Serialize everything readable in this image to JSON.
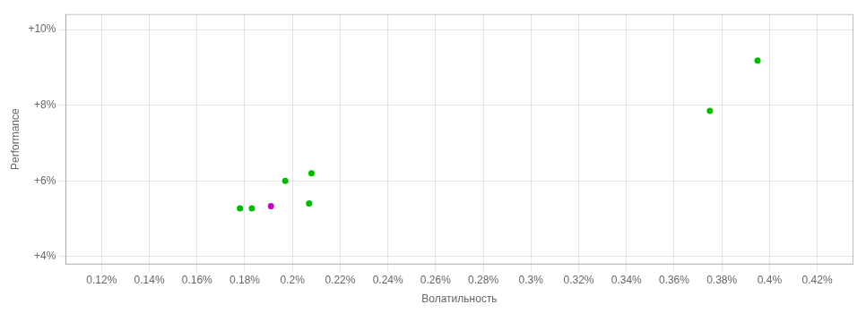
{
  "chart_data": {
    "type": "scatter",
    "xlabel": "Волатильность",
    "ylabel": "Performance",
    "xlim": [
      0.00105,
      0.00435
    ],
    "ylim": [
      0.038,
      0.104
    ],
    "xticks": [
      {
        "value": 0.0012,
        "label": "0.12%"
      },
      {
        "value": 0.0014,
        "label": "0.14%"
      },
      {
        "value": 0.0016,
        "label": "0.16%"
      },
      {
        "value": 0.0018,
        "label": "0.18%"
      },
      {
        "value": 0.002,
        "label": "0.2%"
      },
      {
        "value": 0.0022,
        "label": "0.22%"
      },
      {
        "value": 0.0024,
        "label": "0.24%"
      },
      {
        "value": 0.0026,
        "label": "0.26%"
      },
      {
        "value": 0.0028,
        "label": "0.28%"
      },
      {
        "value": 0.003,
        "label": "0.3%"
      },
      {
        "value": 0.0032,
        "label": "0.32%"
      },
      {
        "value": 0.0034,
        "label": "0.34%"
      },
      {
        "value": 0.0036,
        "label": "0.36%"
      },
      {
        "value": 0.0038,
        "label": "0.38%"
      },
      {
        "value": 0.004,
        "label": "0.4%"
      },
      {
        "value": 0.0042,
        "label": "0.42%"
      }
    ],
    "yticks": [
      {
        "value": 0.04,
        "label": "+4%"
      },
      {
        "value": 0.06,
        "label": "+6%"
      },
      {
        "value": 0.08,
        "label": "+8%"
      },
      {
        "value": 0.1,
        "label": "+10%"
      }
    ],
    "grid": true,
    "series": [
      {
        "color": "#00bb00",
        "x": [
          0.00178,
          0.00183,
          0.00197,
          0.00208,
          0.00207,
          0.00375,
          0.00395
        ],
        "values": [
          0.0527,
          0.0527,
          0.06,
          0.062,
          0.054,
          0.0785,
          0.0918
        ]
      },
      {
        "color": "#cc00cc",
        "x": [
          0.00191
        ],
        "values": [
          0.0533
        ]
      }
    ]
  }
}
